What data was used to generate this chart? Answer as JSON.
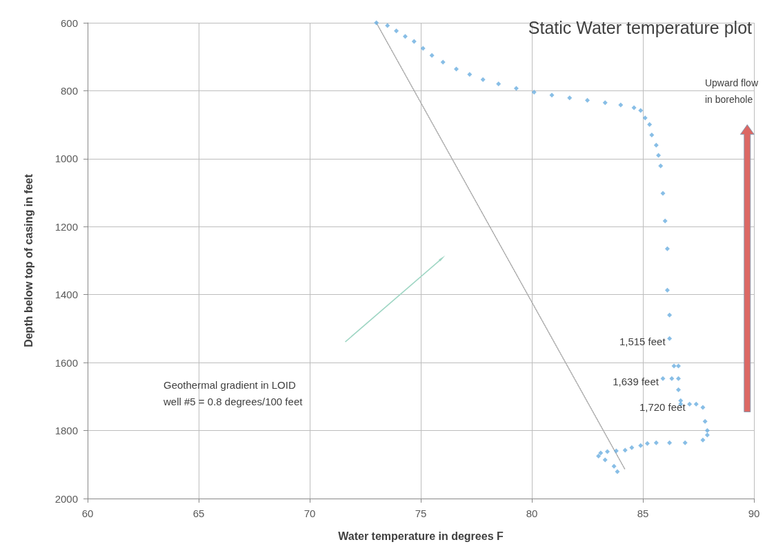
{
  "chart_data": {
    "type": "scatter",
    "title": "Static Water temperature plot",
    "xlabel": "Water temperature in degrees F",
    "ylabel": "Depth below top of casing in feet",
    "xlim": [
      60,
      90
    ],
    "xticks": [
      60,
      65,
      70,
      75,
      80,
      85,
      90
    ],
    "ylim": [
      2000,
      600
    ],
    "yticks": [
      600,
      800,
      1000,
      1200,
      1400,
      1600,
      1800,
      2000
    ],
    "grid": true,
    "marker": "diamond",
    "series": [
      {
        "color": "#6aaee0",
        "x": [
          73.0,
          73.5,
          73.9,
          74.3,
          74.7,
          75.1,
          75.5,
          76.0,
          76.6,
          77.2,
          77.8,
          78.5,
          79.3,
          80.1,
          80.9,
          81.7,
          82.5,
          83.3,
          84.0,
          84.6,
          84.9,
          85.1,
          85.3,
          85.4,
          85.6,
          85.7,
          85.8,
          85.9,
          86.0,
          86.1,
          86.1,
          86.2,
          86.2,
          86.4,
          86.6,
          86.6,
          86.3,
          85.9,
          86.6,
          86.7,
          86.7,
          87.1,
          87.4,
          87.7,
          87.8,
          87.9,
          87.9,
          87.7,
          86.9,
          86.2,
          85.6,
          85.2,
          84.9,
          84.5,
          84.2,
          83.8,
          83.4,
          83.1,
          83.0,
          83.3,
          83.7,
          83.85
        ],
        "values": [
          600,
          608,
          624,
          640,
          655,
          675,
          696,
          716,
          736,
          752,
          767,
          780,
          793,
          804,
          813,
          821,
          828,
          835,
          842,
          850,
          858,
          880,
          899,
          930,
          960,
          990,
          1021,
          1102,
          1183,
          1265,
          1387,
          1460,
          1529,
          1610,
          1610,
          1647,
          1647,
          1647,
          1680,
          1712,
          1722,
          1722,
          1722,
          1732,
          1773,
          1800,
          1813,
          1828,
          1836,
          1836,
          1836,
          1838,
          1844,
          1850,
          1858,
          1860,
          1862,
          1866,
          1875,
          1886,
          1905,
          1921
        ]
      },
      {
        "type": "line",
        "color": "#a8a8a8",
        "line_style": "dotted",
        "marker": "none",
        "x": [
          73.0,
          84.2
        ],
        "values": [
          600,
          1915
        ]
      }
    ],
    "annotations": [
      "Geothermal gradient in LOID\nwell #5 = 0.8 degrees/100 feet",
      "Upward flow\nin borehole",
      {
        "text": "1,515 feet",
        "x": 86.2,
        "y": 1529
      },
      {
        "text": "1,639 feet",
        "x": 85.9,
        "y": 1647
      },
      {
        "text": "1,720 feet",
        "x": 87.1,
        "y": 1722
      }
    ]
  }
}
